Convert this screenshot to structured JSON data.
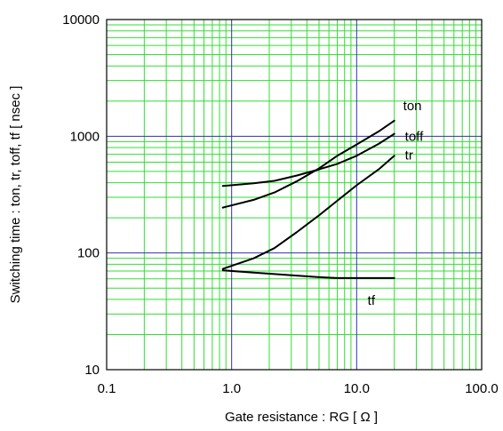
{
  "chart_data": {
    "type": "line",
    "xlabel": "Gate resistance : RG [ Ω ]",
    "ylabel": "Switching time : ton, tr, toff, tf [ nsec ]",
    "xscale": "log",
    "yscale": "log",
    "xlim": [
      0.1,
      100
    ],
    "ylim": [
      10,
      10000
    ],
    "grid": true,
    "x_ticks": [
      "0.1",
      "1.0",
      "10.0",
      "100.0"
    ],
    "y_ticks": [
      "10",
      "100",
      "1000",
      "10000"
    ],
    "colors": {
      "minor_grid": "#33dd33",
      "major_grid": "#3333aa",
      "line": "#000000"
    },
    "series": [
      {
        "name": "ton",
        "x": [
          0.85,
          1.5,
          2.2,
          3.3,
          5,
          7,
          10,
          15,
          20
        ],
        "y": [
          245,
          285,
          330,
          410,
          530,
          680,
          850,
          1100,
          1360
        ]
      },
      {
        "name": "toff",
        "x": [
          0.85,
          1.5,
          2.2,
          3.3,
          5,
          7,
          10,
          15,
          20
        ],
        "y": [
          375,
          395,
          415,
          460,
          520,
          580,
          680,
          860,
          1050
        ]
      },
      {
        "name": "tr",
        "x": [
          0.85,
          1.5,
          2.2,
          3.3,
          5,
          7,
          10,
          15,
          20
        ],
        "y": [
          73,
          90,
          110,
          150,
          210,
          280,
          380,
          520,
          680
        ]
      },
      {
        "name": "tf",
        "x": [
          0.85,
          1.5,
          2.2,
          3.3,
          5,
          7,
          10,
          15,
          20
        ],
        "y": [
          71,
          68,
          66,
          64,
          62,
          61,
          61,
          61,
          61
        ]
      }
    ]
  }
}
